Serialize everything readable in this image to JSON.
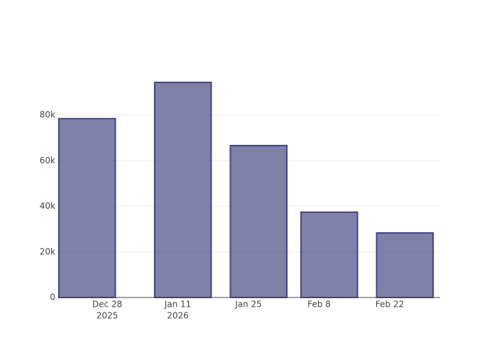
{
  "chart_data": {
    "type": "bar",
    "x": [
      "2025-12-24",
      "2026-01-12",
      "2026-01-27",
      "2026-02-10",
      "2026-02-25"
    ],
    "values": [
      78400,
      94300,
      66600,
      37400,
      28300
    ],
    "color": "rgba(68,68,128,0.68)",
    "edge_color": "#444480",
    "xlim": [
      "2025-12-18",
      "2026-03-04"
    ],
    "xticks": [
      {
        "value": "2025-12-28",
        "label": "Dec 28",
        "year": "2025"
      },
      {
        "value": "2026-01-11",
        "label": "Jan 11",
        "year": "2026"
      },
      {
        "value": "2026-01-25",
        "label": "Jan 25"
      },
      {
        "value": "2026-02-08",
        "label": "Feb 8"
      },
      {
        "value": "2026-02-22",
        "label": "Feb 22"
      }
    ],
    "ylim": [
      0,
      99300
    ],
    "yticks": [
      {
        "value": 0,
        "label": "0"
      },
      {
        "value": 20000,
        "label": "20k"
      },
      {
        "value": 40000,
        "label": "40k"
      },
      {
        "value": 60000,
        "label": "60k"
      },
      {
        "value": 80000,
        "label": "80k"
      }
    ],
    "grid": true
  }
}
